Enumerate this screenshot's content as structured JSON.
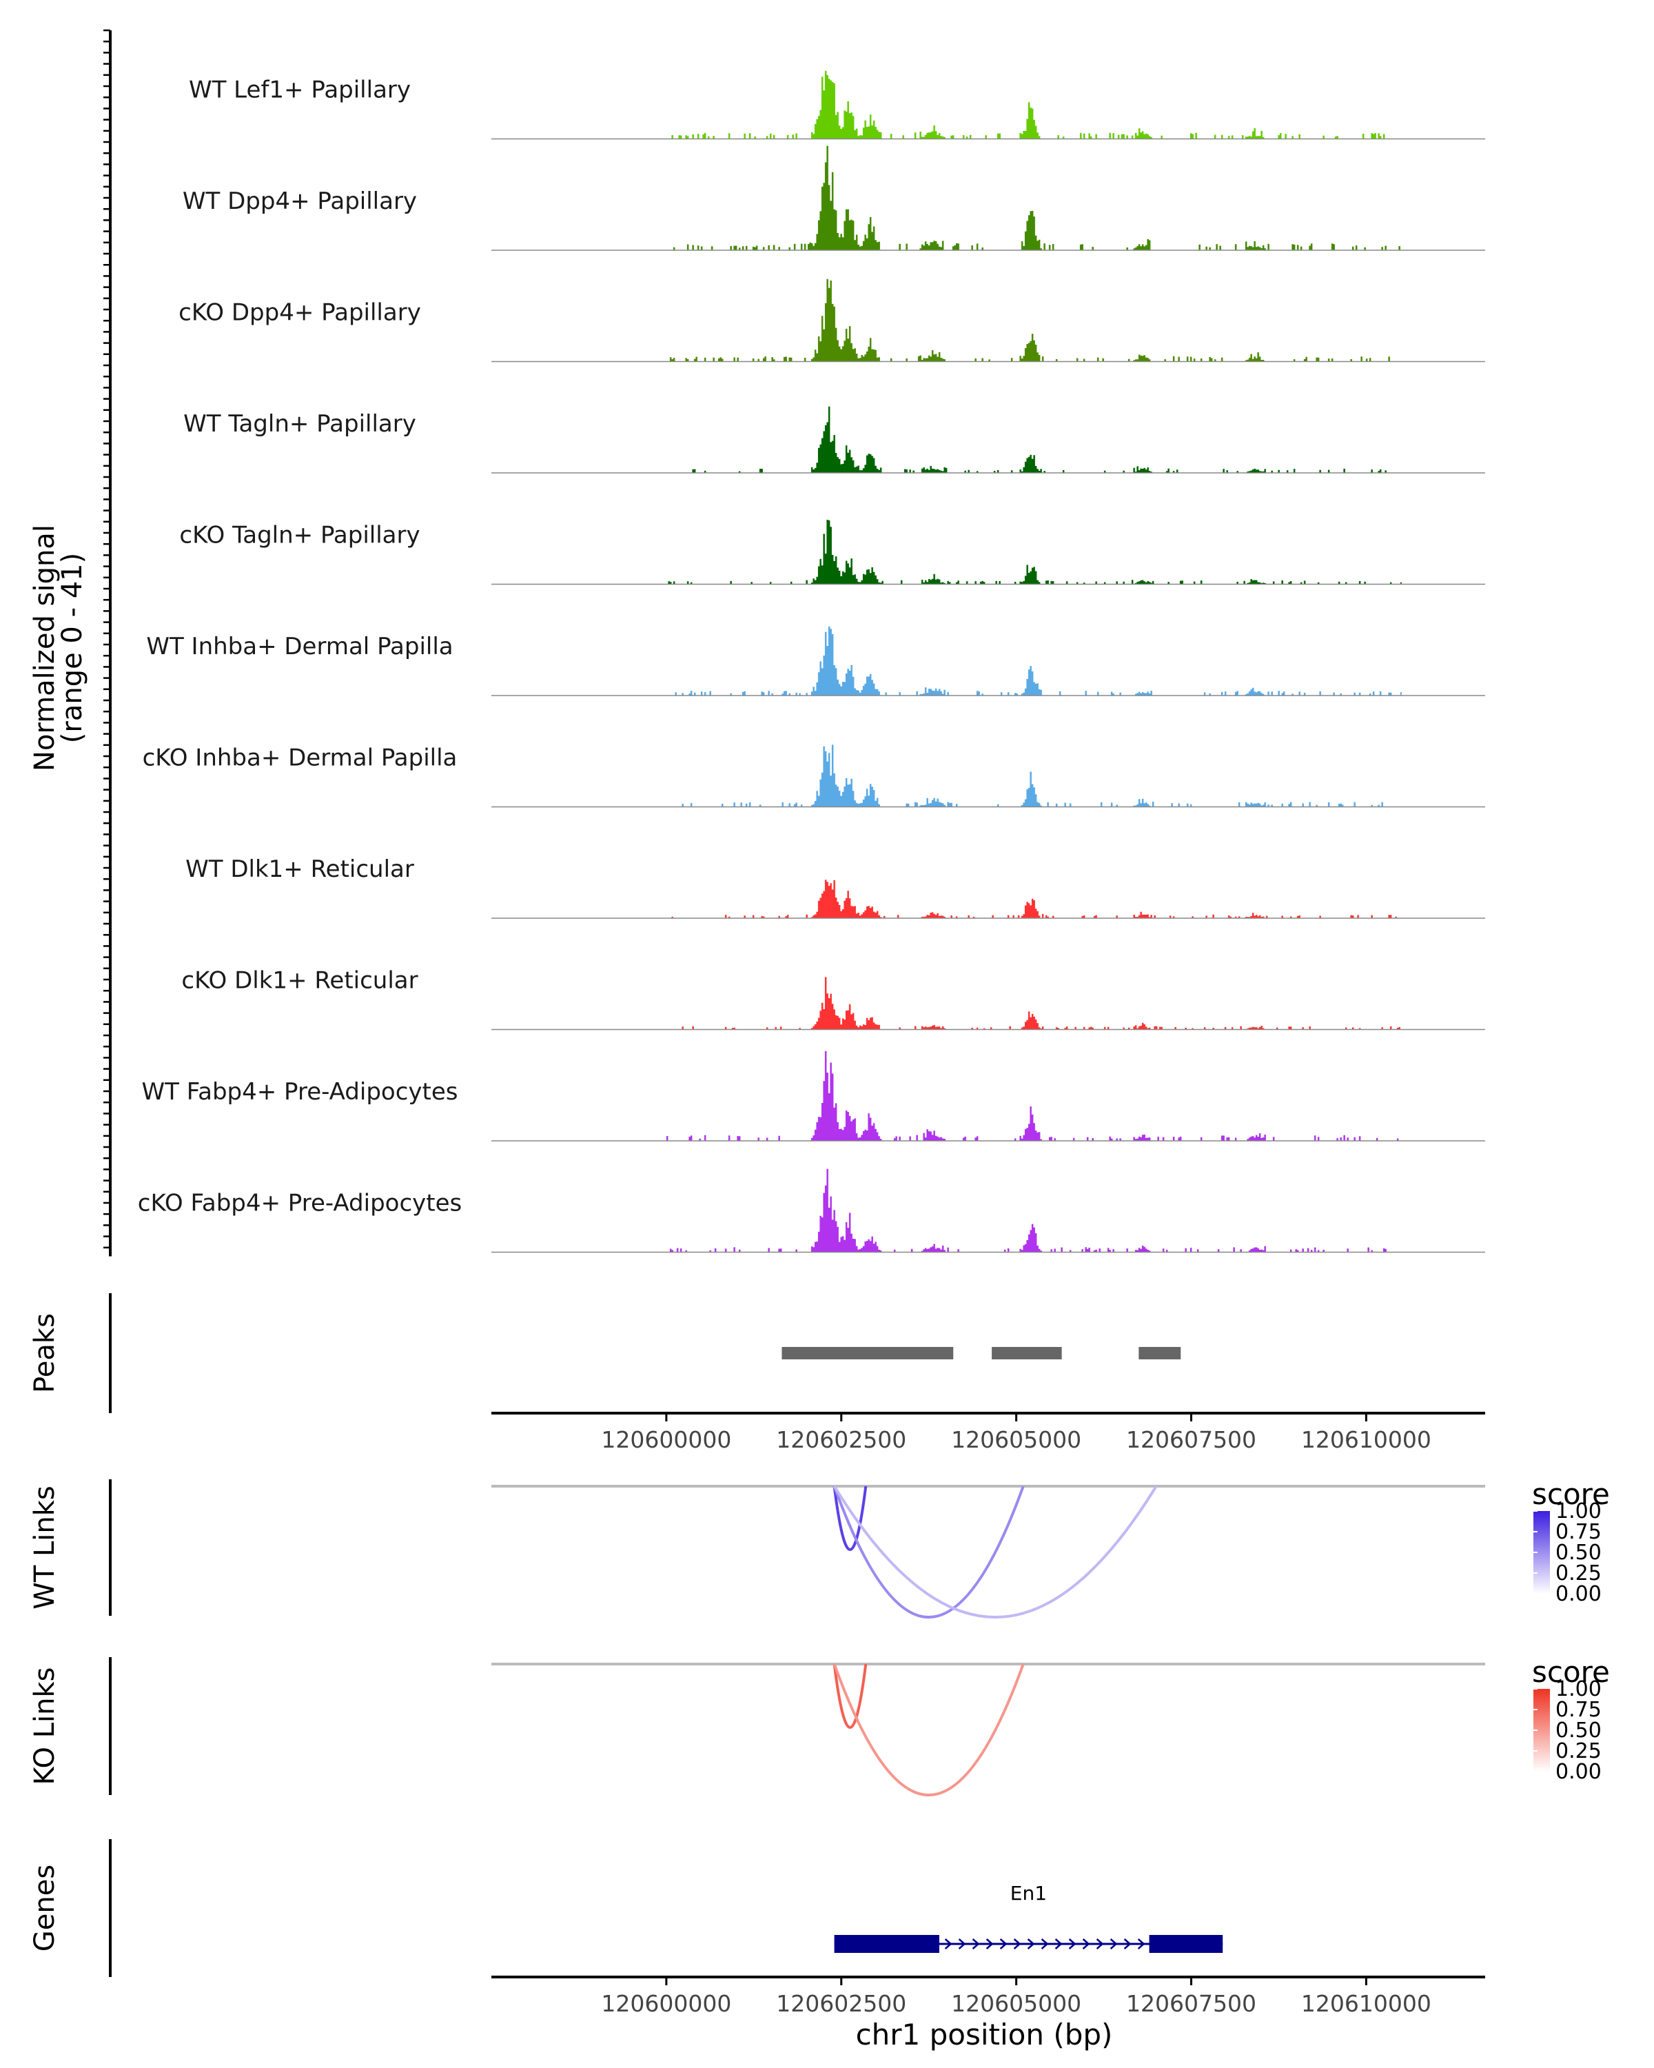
{
  "chart_data": {
    "type": "area",
    "title": "",
    "xlabel": "chr1 position (bp)",
    "xlim": [
      120597500,
      120611700
    ],
    "x_ticks": [
      120600000,
      120602500,
      120605000,
      120607500,
      120610000
    ],
    "x_tick_labels": [
      "120600000",
      "120602500",
      "120605000",
      "120607500",
      "120610000"
    ],
    "coverage": {
      "ylabel_line1": "Normalized signal",
      "ylabel_line2": "(range 0 - 41)",
      "ylim": [
        0,
        41
      ],
      "region_start": 120600000,
      "region_end": 120610500,
      "tracks": [
        {
          "name": "WT Lef1+ Papillary",
          "color": "#66cc00",
          "scale": 0.88,
          "seed": 11
        },
        {
          "name": "WT Dpp4+ Papillary",
          "color": "#448a00",
          "scale": 1.0,
          "seed": 23
        },
        {
          "name": "cKO Dpp4+ Papillary",
          "color": "#4e8a00",
          "scale": 0.78,
          "seed": 37
        },
        {
          "name": "WT Tagln+ Papillary",
          "color": "#006400",
          "scale": 0.62,
          "seed": 41
        },
        {
          "name": "cKO Tagln+ Papillary",
          "color": "#006400",
          "scale": 0.6,
          "seed": 53
        },
        {
          "name": "WT Inhba+ Dermal Papilla",
          "color": "#5aaae6",
          "scale": 0.7,
          "seed": 67
        },
        {
          "name": "cKO Inhba+ Dermal Papilla",
          "color": "#5aaae6",
          "scale": 0.7,
          "seed": 79
        },
        {
          "name": "WT Dlk1+ Reticular",
          "color": "#ff3333",
          "scale": 0.55,
          "seed": 83
        },
        {
          "name": "cKO Dlk1+ Reticular",
          "color": "#ff3333",
          "scale": 0.5,
          "seed": 97
        },
        {
          "name": "WT Fabp4+ Pre-Adipocytes",
          "color": "#b133ee",
          "scale": 0.85,
          "seed": 101
        },
        {
          "name": "cKO Fabp4+ Pre-Adipocytes",
          "color": "#b133ee",
          "scale": 0.72,
          "seed": 113
        }
      ]
    },
    "peaks": {
      "label": "Peaks",
      "color": "#666666",
      "ranges": [
        [
          120601650,
          120604100
        ],
        [
          120604650,
          120605650
        ],
        [
          120606750,
          120607350
        ]
      ]
    },
    "links": [
      {
        "label": "WT Links",
        "legend_title": "score",
        "color_low": "#ffffff",
        "color_high": "#3b1de0",
        "legend_ticks": [
          "1.00",
          "0.75",
          "0.50",
          "0.25",
          "0.00"
        ],
        "arcs": [
          {
            "start": 120602400,
            "end": 120602850,
            "score": 0.82
          },
          {
            "start": 120602400,
            "end": 120605100,
            "score": 0.45
          },
          {
            "start": 120602400,
            "end": 120607000,
            "score": 0.22
          }
        ]
      },
      {
        "label": "KO Links",
        "legend_title": "score",
        "color_low": "#ffffff",
        "color_high": "#ee3322",
        "legend_ticks": [
          "1.00",
          "0.75",
          "0.50",
          "0.25",
          "0.00"
        ],
        "arcs": [
          {
            "start": 120602400,
            "end": 120602850,
            "score": 0.75
          },
          {
            "start": 120602400,
            "end": 120605100,
            "score": 0.45
          }
        ]
      }
    ],
    "genes": {
      "label": "Genes",
      "color": "#000088",
      "items": [
        {
          "name": "En1",
          "start": 120602400,
          "end": 120607950,
          "strand": "+",
          "exons": [
            [
              120602400,
              120603900
            ],
            [
              120606900,
              120607950
            ]
          ]
        }
      ]
    }
  }
}
